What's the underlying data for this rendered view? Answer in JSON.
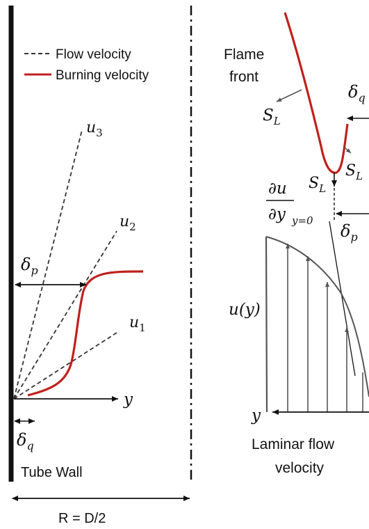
{
  "legend": {
    "flow_label": "Flow velocity",
    "burning_label": "Burning velocity",
    "flow_color": "#333333",
    "burning_color": "#c0201c"
  },
  "left_panel": {
    "u3": "u",
    "u3_sub": "3",
    "u2": "u",
    "u2_sub": "2",
    "u1": "u",
    "u1_sub": "1",
    "delta_p": "δ",
    "delta_p_sub": "p",
    "delta_q": "δ",
    "delta_q_sub": "q",
    "y_axis": "y",
    "wall_label": "Tube Wall",
    "radius_label": "R = D/2"
  },
  "right_panel": {
    "flame_front": [
      "Flame",
      "front"
    ],
    "sl": "S",
    "sl_sub": "L",
    "delta_q": "δ",
    "delta_q_sub": "q",
    "delta_p": "δ",
    "delta_p_sub": "p",
    "dudy_num": "∂u",
    "dudy_den": "∂y",
    "dudy_sub": "y=0",
    "u_of_y": "u(y)",
    "y_axis": "y",
    "laminar_label": [
      "Laminar flow",
      "velocity"
    ]
  },
  "colors": {
    "red": "#c0201c",
    "black": "#111111"
  }
}
